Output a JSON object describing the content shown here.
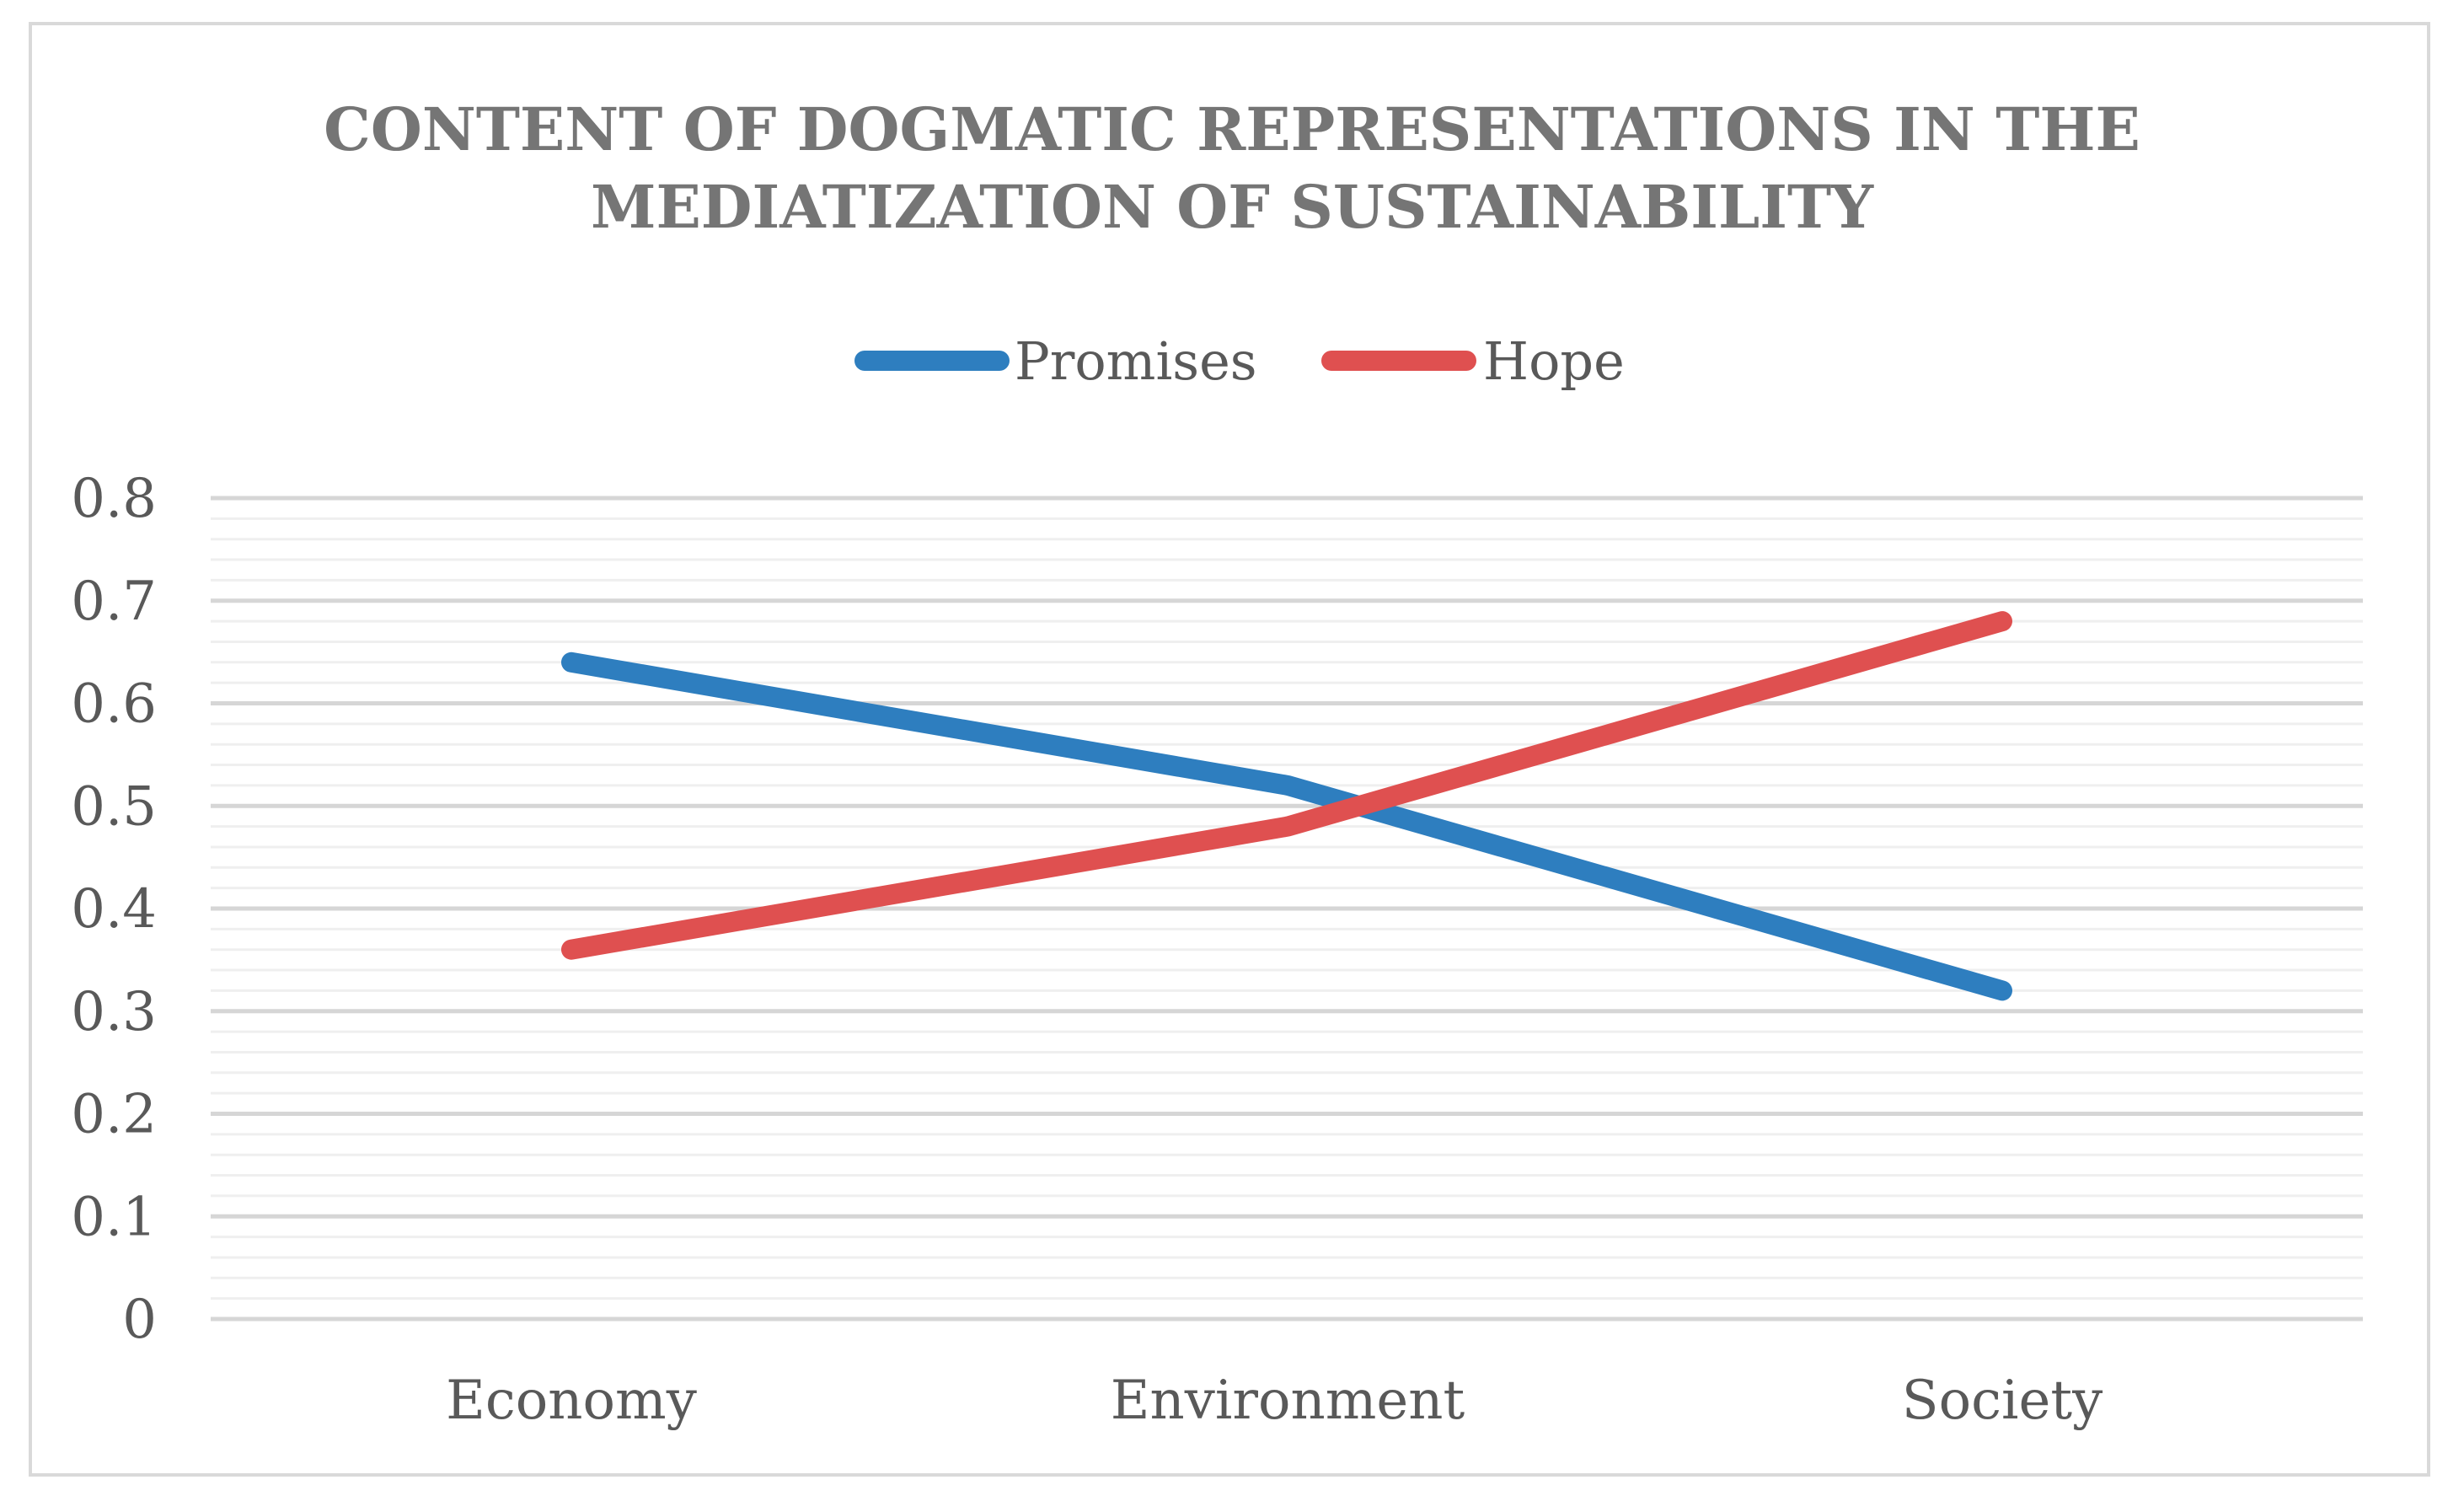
{
  "chart_data": {
    "type": "line",
    "title": [
      "CONTENT OF DOGMATIC REPRESENTATIONS IN THE",
      "MEDIATIZATION OF SUSTAINABILITY"
    ],
    "categories": [
      "Economy",
      "Environment",
      "Society"
    ],
    "series": [
      {
        "name": "Promises",
        "color": "#2e7ebf",
        "values": [
          0.64,
          0.52,
          0.32
        ]
      },
      {
        "name": "Hope",
        "color": "#df5050",
        "values": [
          0.36,
          0.48,
          0.68
        ]
      }
    ],
    "ylim": [
      0,
      0.8
    ],
    "yticks": [
      "0",
      "0.1",
      "0.2",
      "0.3",
      "0.4",
      "0.5",
      "0.6",
      "0.7",
      "0.8"
    ],
    "ytick_values": [
      0,
      0.1,
      0.2,
      0.3,
      0.4,
      0.5,
      0.6,
      0.7,
      0.8
    ],
    "xlabel": "",
    "ylabel": "",
    "grid": true,
    "legend_position": "top"
  }
}
